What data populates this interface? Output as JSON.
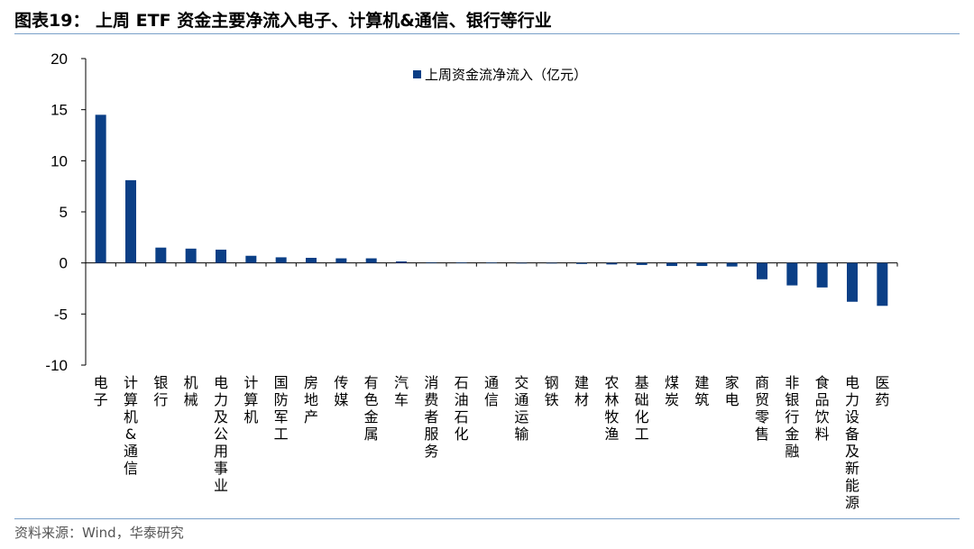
{
  "header": {
    "title": "图表19：  上周 ETF 资金主要净流入电子、计算机&通信、银行等行业"
  },
  "footer": {
    "source": "资料来源：Wind，华泰研究"
  },
  "colors": {
    "bar": "#0b3f86",
    "rule": "#7aa0c9"
  },
  "chart_data": {
    "type": "bar",
    "title": "",
    "xlabel": "",
    "ylabel": "",
    "ylim": [
      -10,
      20
    ],
    "yticks": [
      20,
      15,
      10,
      5,
      0,
      -5,
      -10
    ],
    "grid": false,
    "legend_position": "top-center",
    "categories": [
      "电子",
      "计算机&通信",
      "银行",
      "机械",
      "电力及公用事业",
      "计算机",
      "国防军工",
      "房地产",
      "传媒",
      "有色金属",
      "汽车",
      "消费者服务",
      "石油石化",
      "通信",
      "交通运输",
      "钢铁",
      "建材",
      "农林牧渔",
      "基础化工",
      "煤炭",
      "建筑",
      "家电",
      "商贸零售",
      "非银行金融",
      "食品饮料",
      "电力设备及新能源",
      "医药"
    ],
    "series": [
      {
        "name": "上周资金流净流入（亿元）",
        "values": [
          14.5,
          8.1,
          1.5,
          1.4,
          1.3,
          0.7,
          0.55,
          0.5,
          0.45,
          0.45,
          0.15,
          0.05,
          0.03,
          0.02,
          -0.02,
          -0.05,
          -0.1,
          -0.15,
          -0.2,
          -0.3,
          -0.3,
          -0.35,
          -1.6,
          -2.2,
          -2.4,
          -3.8,
          -4.2
        ]
      }
    ]
  }
}
